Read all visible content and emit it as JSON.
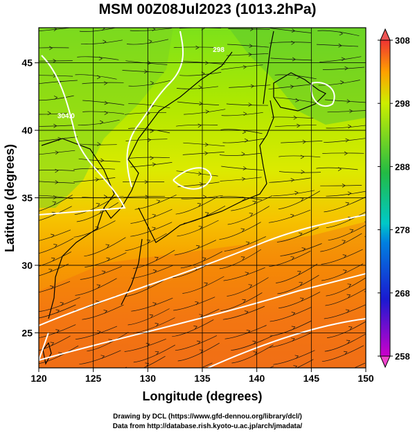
{
  "title": "MSM 00Z08Jul2023 (1013.2hPa)",
  "xlabel": "Longitude (degrees)",
  "ylabel": "Latitude  (degrees)",
  "footer_line1": "Drawing by DCL (https://www.gfd-dennou.org/library/dcl/)",
  "footer_line2": "Data from http://database.rish.kyoto-u.ac.jp/arch/jmadata/",
  "map": {
    "lon_range": [
      120,
      150
    ],
    "lat_range": [
      22.4,
      47.6
    ],
    "lon_ticks": [
      120,
      125,
      130,
      135,
      140,
      145,
      150
    ],
    "lat_ticks": [
      25,
      30,
      35,
      40,
      45
    ],
    "contour_labels": [
      {
        "text": "304.0",
        "lon": 122.5,
        "lat": 40.9
      },
      {
        "text": "298",
        "lon": 136.5,
        "lat": 45.8
      }
    ]
  },
  "colorbar": {
    "min": 258,
    "max": 308,
    "tick_labels": [
      "308",
      "298",
      "288",
      "278",
      "268",
      "258"
    ],
    "tick_values": [
      308,
      298,
      288,
      278,
      268,
      258
    ]
  },
  "colors": {
    "cold": "#cc00cc",
    "cool": "#0000cc",
    "mid": "#00c8c8",
    "mild": "#22bb44",
    "warm": "#ccee00",
    "hot": "#ff6600",
    "hottest": "#ee3333"
  }
}
